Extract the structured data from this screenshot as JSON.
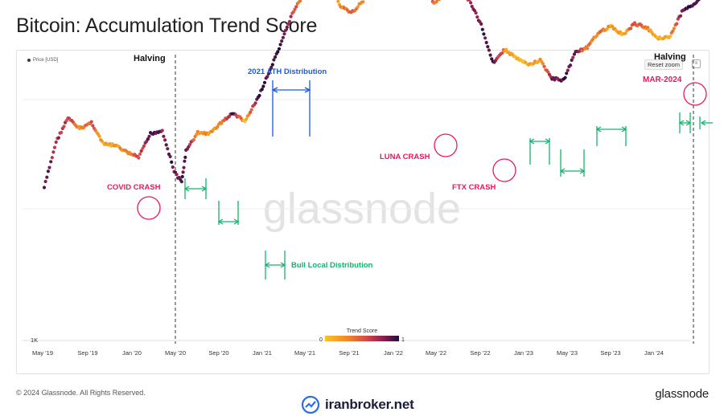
{
  "title": "Bitcoin: Accumulation Trend Score",
  "legend": {
    "price_series": "Price [USD]"
  },
  "controls": {
    "reset_zoom": "Reset zoom",
    "menu_icon": "chart-menu-icon"
  },
  "watermark": "glassnode",
  "footer": {
    "copyright": "© 2024 Glassnode. All Rights Reserved.",
    "brand": "glassnode",
    "partner": "iranbroker.net"
  },
  "colors": {
    "low": "#f9c22a",
    "mid1": "#f08a24",
    "mid2": "#d64a4a",
    "mid3": "#8c1f52",
    "high": "#1f0f3d",
    "magenta": "#e6195d",
    "blue": "#1a5bdc",
    "green": "#15b36d"
  },
  "chart_data": {
    "type": "scatter",
    "y_scale": "log",
    "y_tick_label": "1K",
    "x_ticks": [
      "May '19",
      "Sep '19",
      "Jan '20",
      "May '20",
      "Sep '20",
      "Jan '21",
      "May '21",
      "Sep '21",
      "Jan '22",
      "May '22",
      "Sep '22",
      "Jan '23",
      "May '23",
      "Sep '23",
      "Jan '24"
    ],
    "series": [
      {
        "name": "Price [USD]",
        "x": [
          "2019-04",
          "2019-05",
          "2019-06",
          "2019-07",
          "2019-08",
          "2019-09",
          "2019-10",
          "2019-11",
          "2019-12",
          "2020-01",
          "2020-02",
          "2020-03",
          "2020-03-20",
          "2020-04",
          "2020-05",
          "2020-06",
          "2020-07",
          "2020-08",
          "2020-09",
          "2020-10",
          "2020-11",
          "2020-12",
          "2021-01",
          "2021-02",
          "2021-03",
          "2021-04",
          "2021-05",
          "2021-06",
          "2021-07",
          "2021-08",
          "2021-09",
          "2021-10",
          "2021-11",
          "2021-12",
          "2022-01",
          "2022-02",
          "2022-03",
          "2022-04",
          "2022-05",
          "2022-06",
          "2022-07",
          "2022-08",
          "2022-09",
          "2022-10",
          "2022-11",
          "2022-12",
          "2023-01",
          "2023-02",
          "2023-03",
          "2023-04",
          "2023-05",
          "2023-06",
          "2023-07",
          "2023-08",
          "2023-09",
          "2023-10",
          "2023-11",
          "2023-12",
          "2024-01",
          "2024-02",
          "2024-03",
          "2024-04",
          "2024-05"
        ],
        "y": [
          5200,
          8500,
          11000,
          9800,
          10500,
          8300,
          8200,
          7600,
          7200,
          9300,
          9600,
          6200,
          5500,
          7700,
          9400,
          9300,
          10500,
          11600,
          10600,
          13300,
          17800,
          24000,
          34000,
          42000,
          58000,
          60000,
          37000,
          34000,
          39000,
          48000,
          44000,
          61000,
          66000,
          48000,
          38000,
          42000,
          45000,
          39000,
          30000,
          20000,
          23000,
          21000,
          19500,
          20500,
          16800,
          16600,
          22500,
          23500,
          28000,
          29500,
          27000,
          30400,
          29200,
          26000,
          26500,
          34500,
          37700,
          42500,
          42000,
          51000,
          70000,
          64000,
          62000
        ],
        "trend_score": [
          0.9,
          0.7,
          0.6,
          0.3,
          0.5,
          0.1,
          0.2,
          0.4,
          0.5,
          0.9,
          0.8,
          0.9,
          0.85,
          0.95,
          0.3,
          0.2,
          0.3,
          0.9,
          0.1,
          0.9,
          0.95,
          1.0,
          0.6,
          0.2,
          0.1,
          0.2,
          0.3,
          0.5,
          0.2,
          0.6,
          0.4,
          0.8,
          0.9,
          0.7,
          0.4,
          0.5,
          0.3,
          0.6,
          0.9,
          0.95,
          0.3,
          0.1,
          0.1,
          0.2,
          0.8,
          0.9,
          0.8,
          0.3,
          0.4,
          0.2,
          0.1,
          0.6,
          0.3,
          0.1,
          0.2,
          0.9,
          0.95,
          0.8,
          0.6,
          0.9,
          0.95,
          0.3,
          0.6
        ]
      }
    ],
    "colorbar": {
      "title": "Trend Score",
      "min_label": "0",
      "max_label": "1"
    },
    "annotations": {
      "halving_1": "Halving",
      "halving_2": "Halving",
      "covid": "COVID CRASH",
      "ath": "2021 ATH Distribution",
      "luna": "LUNA CRASH",
      "ftx": "FTX CRASH",
      "mar2024": "MAR-2024",
      "bull_local": "Bull Local Distribution"
    }
  }
}
